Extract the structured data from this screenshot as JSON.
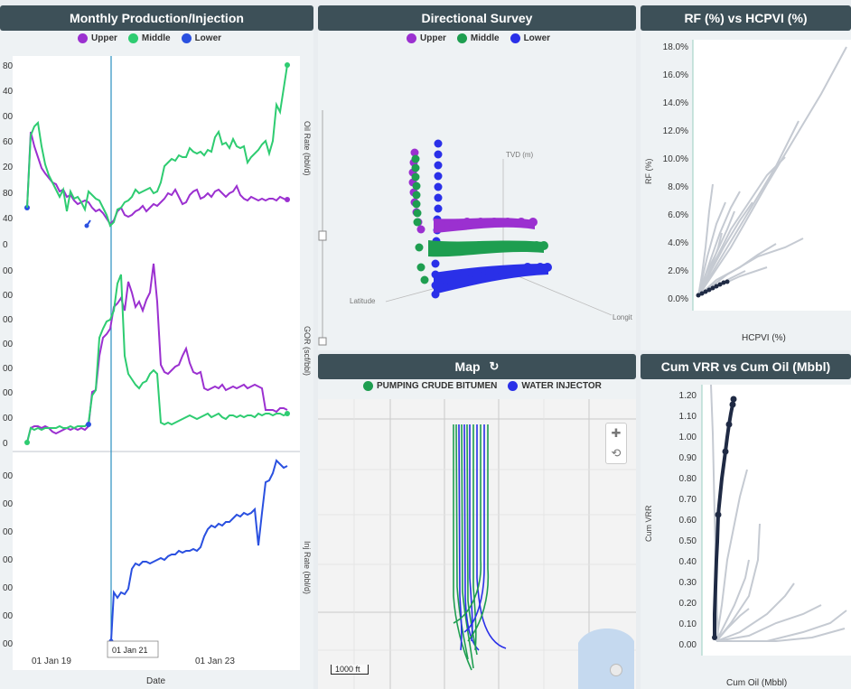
{
  "panels": {
    "production": {
      "title": "Monthly Production/Injection",
      "legend": [
        {
          "name": "Upper",
          "color": "#9b30d0"
        },
        {
          "name": "Middle",
          "color": "#2ecc71"
        },
        {
          "name": "Lower",
          "color": "#2a50e0"
        }
      ],
      "subplots": [
        {
          "ylabel": "Oil Rate (bbl/d)",
          "ticks": [
            "80",
            "40",
            "00",
            "60",
            "20",
            "80",
            "40",
            "0"
          ]
        },
        {
          "ylabel": "GOR (scf/bbl)",
          "ticks": [
            "00",
            "00",
            "00",
            "00",
            "00",
            "00",
            "00",
            "0"
          ]
        },
        {
          "ylabel": "Inj Rate (bbl/d)",
          "ticks": [
            "00",
            "00",
            "00",
            "00",
            "00",
            "00",
            "00",
            "00"
          ]
        }
      ],
      "xticks": [
        "01 Jan 19",
        "01 Jan 21",
        "01 Jan 23"
      ],
      "xlabel": "Date",
      "hover_label": "01 Jan 21"
    },
    "survey": {
      "title": "Directional Survey",
      "legend": [
        {
          "name": "Upper",
          "color": "#9b30d0"
        },
        {
          "name": "Middle",
          "color": "#1e9e50"
        },
        {
          "name": "Lower",
          "color": "#2a30e8"
        }
      ],
      "axes": {
        "z": "TVD (m)",
        "x": "Latitude",
        "y": "Longit"
      }
    },
    "rf": {
      "title": "RF (%) vs HCPVI (%)",
      "ylabel": "RF (%)",
      "xlabel": "HCPVI (%)",
      "yticks": [
        "18.0%",
        "16.0%",
        "14.0%",
        "12.0%",
        "10.0%",
        "8.0%",
        "6.0%",
        "4.0%",
        "2.0%",
        "0.0%"
      ]
    },
    "map": {
      "title": "Map",
      "refresh_icon": "refresh-icon",
      "legend": [
        {
          "name": "PUMPING CRUDE BITUMEN",
          "color": "#1e9e50"
        },
        {
          "name": "WATER INJECTOR",
          "color": "#2a30e8"
        }
      ],
      "scale": "1000 ft",
      "tools": {
        "pan": "move-icon",
        "lasso": "lasso-icon"
      }
    },
    "vrr": {
      "title": "Cum VRR vs Cum Oil (Mbbl)",
      "ylabel": "Cum VRR",
      "xlabel": "Cum Oil (Mbbl)",
      "yticks": [
        "1.20",
        "1.10",
        "1.00",
        "0.90",
        "0.80",
        "0.70",
        "0.60",
        "0.50",
        "0.40",
        "0.30",
        "0.20",
        "0.10",
        "0.00"
      ]
    }
  },
  "colors": {
    "header_bg": "#3d5058",
    "panel_bg": "#eef2f4",
    "upper": "#9b30d0",
    "middle": "#2ecc71",
    "lower": "#2a50e0",
    "gray_curve": "#c5cad2",
    "highlight": "#1f2a44"
  }
}
